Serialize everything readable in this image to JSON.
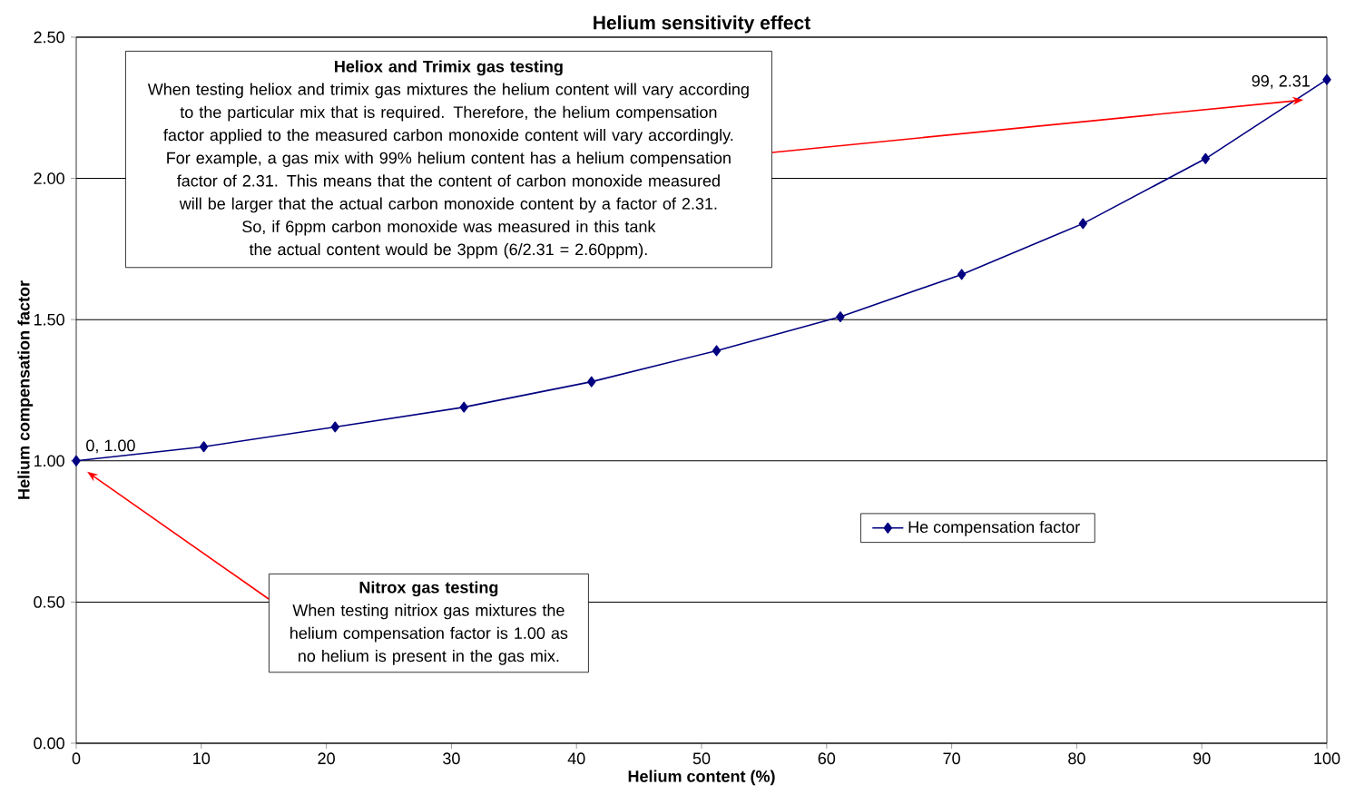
{
  "chart_data": {
    "type": "line",
    "title": "Helium sensitivity effect",
    "xlabel": "Helium content (%)",
    "ylabel": "Helium compensation factor",
    "x": [
      0,
      10.2,
      20.7,
      31.0,
      41.2,
      51.2,
      61.1,
      70.8,
      80.5,
      90.3,
      100
    ],
    "series": [
      {
        "name": "He compensation factor",
        "color": "#000080",
        "values": [
          1.0,
          1.05,
          1.12,
          1.19,
          1.28,
          1.39,
          1.51,
          1.66,
          1.84,
          2.07,
          2.35
        ]
      }
    ],
    "xlim": [
      0,
      100
    ],
    "xticks": [
      0,
      10,
      20,
      30,
      40,
      50,
      60,
      70,
      80,
      90,
      100
    ],
    "ylim": [
      0,
      2.5
    ],
    "yticks": [
      {
        "value": 0,
        "label": "0.00"
      },
      {
        "value": 0.5,
        "label": "0.50"
      },
      {
        "value": 1,
        "label": "1.00"
      },
      {
        "value": 1.5,
        "label": "1.50"
      },
      {
        "value": 2,
        "label": "2.00"
      },
      {
        "value": 2.5,
        "label": "2.50"
      }
    ],
    "grid": "y",
    "legend": "right",
    "marker": "diamond",
    "line_style": "solid",
    "annotations": [
      {
        "text": "0, 1.00",
        "x": 0,
        "y": 1.0
      },
      {
        "text": "99, 2.31",
        "x": 99,
        "y": 2.31
      },
      "Heliox and Trimix gas testing",
      "When testing heliox and trimix gas mixtures the helium content will vary according to the particular mix that is required. Therefore, the helium compensation factor applied to the measured carbon monoxide content will vary accordingly.",
      "For example, a gas mix with 99% helium content has a helium compensation factor of 2.31. This means that the content of carbon monoxide measured will be larger that the actual carbon monoxide content by a factor of 2.31.",
      "So, if 6ppm carbon monoxide was measured in this tank the actual content would be 3ppm (6/2.31 = 2.60ppm).",
      "Nitrox gas testing",
      "When testing nitriox gas mixtures the helium compensation factor is 1.00 as no helium is present in the gas mix."
    ]
  }
}
